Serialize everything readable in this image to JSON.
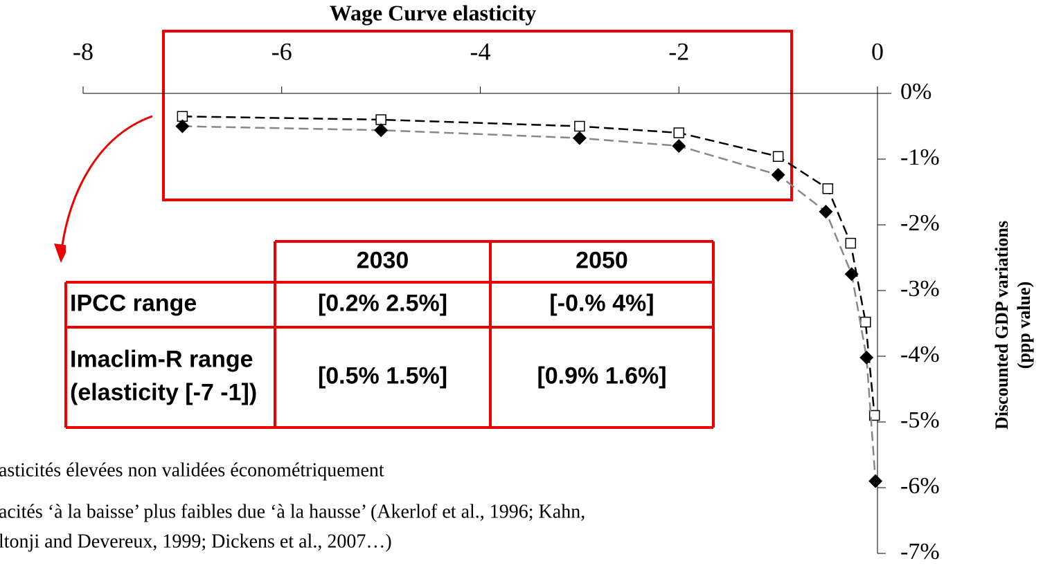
{
  "chart_data": {
    "type": "line",
    "title": "Wage Curve elasticity",
    "ylabel": [
      "Discounted GDP variations",
      "(ppp value)"
    ],
    "xlim": [
      -8,
      0
    ],
    "xticks": [
      -8,
      -6,
      -4,
      -2,
      0
    ],
    "ylim": [
      -7,
      0
    ],
    "yticks": [
      {
        "value": 0,
        "label": "0%"
      },
      {
        "value": -1,
        "label": "-1%"
      },
      {
        "value": -2,
        "label": "-2%"
      },
      {
        "value": -3,
        "label": "-3%"
      },
      {
        "value": -4,
        "label": "-4%"
      },
      {
        "value": -5,
        "label": "-5%"
      },
      {
        "value": -6,
        "label": "-6%"
      },
      {
        "value": -7,
        "label": "-7%"
      }
    ],
    "grid": false,
    "series": [
      {
        "marker": "square",
        "color": "#000000",
        "x": [
          -7,
          -5,
          -3,
          -2,
          -1,
          -0.5,
          -0.27,
          -0.12,
          -0.03
        ],
        "values": [
          -0.35,
          -0.4,
          -0.5,
          -0.6,
          -0.96,
          -1.45,
          -2.28,
          -3.48,
          -4.9
        ]
      },
      {
        "marker": "diamond",
        "color": "#888888",
        "x": [
          -7,
          -5,
          -3,
          -2,
          -1,
          -0.52,
          -0.26,
          -0.11,
          -0.02
        ],
        "values": [
          -0.5,
          -0.56,
          -0.68,
          -0.8,
          -1.24,
          -1.8,
          -2.75,
          -4.02,
          -5.9
        ]
      }
    ]
  },
  "table": {
    "columns": [
      "2030",
      "2050"
    ],
    "rows": [
      {
        "label": [
          "IPCC range"
        ],
        "values": [
          "[0.2%  2.5%]",
          "[-0.%  4%]"
        ]
      },
      {
        "label": [
          "Imaclim-R range",
          "(elasticity [-7  -1])"
        ],
        "values": [
          "[0.5%  1.5%]",
          "[0.9%  1.6%]"
        ]
      }
    ]
  },
  "notes": [
    "asticités élevées non validées  économétriquement",
    "acités ‘à la baisse’ plus faibles due ‘à la hausse’ (Akerlof et al., 1996; Kahn,",
    "ltonji and Devereux, 1999; Dickens et al., 2007…)"
  ]
}
